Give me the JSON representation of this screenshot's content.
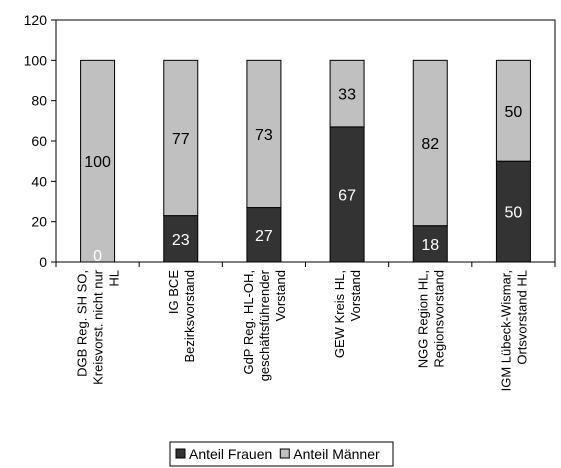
{
  "chart_data": {
    "type": "bar",
    "stacked": true,
    "percent": true,
    "categories": [
      [
        "DGB Reg. SH SO,",
        "Kreisvorst. nicht nur",
        "HL"
      ],
      [
        "IG BCE",
        "Bezirksvorstand"
      ],
      [
        "GdP Reg. HL-OH,",
        "geschäftsführender",
        "Vorstand"
      ],
      [
        "GEW Kreis HL,",
        "Vorstand"
      ],
      [
        "NGG Region HL,",
        "Regionsvorstand"
      ],
      [
        "IGM Lübeck-Wismar,",
        "Ortsvorstand HL"
      ]
    ],
    "series": [
      {
        "name": "Anteil Frauen",
        "color": "#333333",
        "label_color": "#ffffff",
        "values": [
          0,
          23,
          27,
          67,
          18,
          50
        ]
      },
      {
        "name": "Anteil Männer",
        "color": "#c0c0c0",
        "label_color": "#000000",
        "values": [
          100,
          77,
          73,
          33,
          82,
          50
        ]
      }
    ],
    "yticks": [
      0,
      20,
      40,
      60,
      80,
      100,
      120
    ],
    "ylim": [
      0,
      120
    ],
    "grid": false,
    "legend_position": "bottom"
  }
}
